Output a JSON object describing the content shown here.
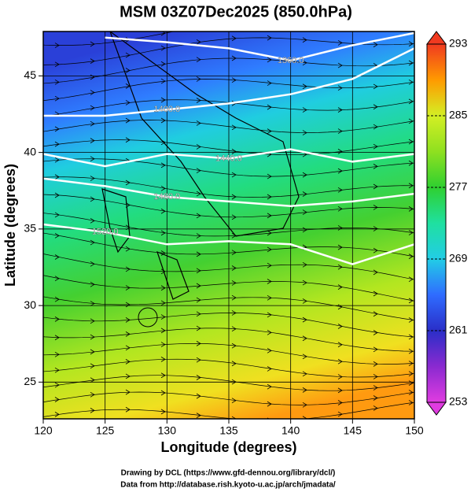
{
  "chart_data": {
    "type": "map",
    "title": "MSM 03Z07Dec2025 (850.0hPa)",
    "x_label": "Longitude (degrees)",
    "y_label": "Latitude  (degrees)",
    "xlim": [
      120,
      150
    ],
    "ylim": [
      22.6,
      47.9
    ],
    "xticks": [
      120,
      125,
      130,
      135,
      140,
      145,
      150
    ],
    "yticks": [
      25,
      30,
      35,
      40,
      45
    ],
    "grid": true,
    "colorbar": {
      "lim": [
        253,
        293
      ],
      "ticks": [
        253,
        261,
        269,
        277,
        285,
        293
      ],
      "colors": [
        "#e03ce0",
        "#8a2ad0",
        "#2a2ec8",
        "#2f6cff",
        "#22cde6",
        "#1fe0a0",
        "#2fd030",
        "#8fe020",
        "#d4ef24",
        "#ff9a00",
        "#f03a20"
      ]
    },
    "contour_lon": [
      120,
      125,
      130,
      135,
      140,
      145,
      150
    ],
    "contours": [
      {
        "value": 1360,
        "label": "1360.0",
        "lat": [
          null,
          47.5,
          47.2,
          46.8,
          46.0,
          47.0,
          47.8
        ]
      },
      {
        "value": 1400,
        "label": "1400.0",
        "lat": [
          42.4,
          42.4,
          42.8,
          43.2,
          43.8,
          44.8,
          46.8
        ]
      },
      {
        "value": 1440,
        "label": "1440.0",
        "lat": [
          39.9,
          39.1,
          39.9,
          39.6,
          40.2,
          39.4,
          39.9
        ]
      },
      {
        "value": 1480,
        "label": "1480.0",
        "lat": [
          38.3,
          37.8,
          37.1,
          36.8,
          36.5,
          36.8,
          37.3
        ]
      },
      {
        "value": 1520,
        "label": "1520.0",
        "lat": [
          35.3,
          34.8,
          34.0,
          34.2,
          34.0,
          32.7,
          34.0
        ]
      }
    ],
    "footer": [
      "Drawing by DCL (https://www.gfd-dennou.org/library/dcl/)",
      "Data from http://database.rish.kyoto-u.ac.jp/arch/jmadata/"
    ]
  }
}
